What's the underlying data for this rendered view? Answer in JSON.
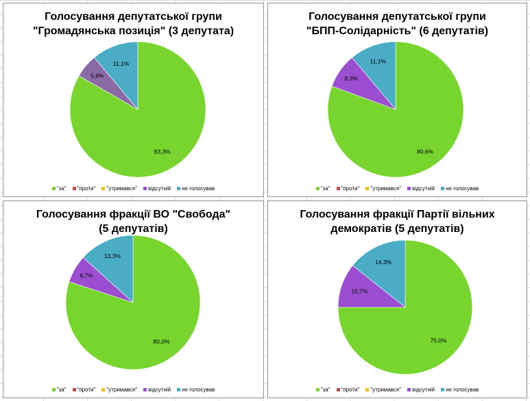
{
  "colors": {
    "za": "#77d52e",
    "proty": "#c0504d",
    "utrymavsia": "#f5c000",
    "vidsutnii": "#9b4fd0",
    "ne_holosuvav": "#4bacc6"
  },
  "legend_labels": [
    "\"за\"",
    "\"проти\"",
    "\"утримався\"",
    "відсутній",
    "не голосував"
  ],
  "chart_data": [
    {
      "type": "pie",
      "title_line1": "Голосування депутатської групи",
      "title_line2": "\"Громадянська позиція\" (3 депутата)",
      "legend_position": "bottom",
      "slices": [
        {
          "label": "\"за\"",
          "value": 83.3,
          "display": "83,3%",
          "color_key": "za"
        },
        {
          "label": "\"проти\"",
          "value": 0,
          "display": "",
          "color_key": "proty"
        },
        {
          "label": "\"утримався\"",
          "value": 0,
          "display": "",
          "color_key": "utrymavsia"
        },
        {
          "label": "відсутній",
          "value": 5.6,
          "display": "5,6%",
          "color_key": "vidsutnii",
          "color_override": "#8a6aa4"
        },
        {
          "label": "не голосував",
          "value": 11.1,
          "display": "11,1%",
          "color_key": "ne_holosuvav"
        }
      ]
    },
    {
      "type": "pie",
      "title_line1": "Голосування депутатської групи",
      "title_line2": "\"БПП-Солідарність\" (6 депутатів)",
      "legend_position": "bottom",
      "slices": [
        {
          "label": "\"за\"",
          "value": 80.6,
          "display": "80,6%",
          "color_key": "za"
        },
        {
          "label": "\"проти\"",
          "value": 0,
          "display": "",
          "color_key": "proty"
        },
        {
          "label": "\"утримався\"",
          "value": 0,
          "display": "",
          "color_key": "utrymavsia"
        },
        {
          "label": "відсутній",
          "value": 8.3,
          "display": "8,3%",
          "color_key": "vidsutnii"
        },
        {
          "label": "не голосував",
          "value": 11.1,
          "display": "11,1%",
          "color_key": "ne_holosuvav"
        }
      ]
    },
    {
      "type": "pie",
      "title_line1": "Голосування фракції ВО \"Свобода\"",
      "title_line2": "(5 депутатів)",
      "legend_position": "bottom",
      "slices": [
        {
          "label": "\"за\"",
          "value": 80.0,
          "display": "80,0%",
          "color_key": "za"
        },
        {
          "label": "\"проти\"",
          "value": 0,
          "display": "",
          "color_key": "proty"
        },
        {
          "label": "\"утримався\"",
          "value": 0,
          "display": "",
          "color_key": "utrymavsia"
        },
        {
          "label": "відсутній",
          "value": 6.7,
          "display": "6,7%",
          "color_key": "vidsutnii"
        },
        {
          "label": "не голосував",
          "value": 13.3,
          "display": "13,3%",
          "color_key": "ne_holosuvav"
        }
      ]
    },
    {
      "type": "pie",
      "title_line1": "Голосування фракції Партії вільних",
      "title_line2": "демократів (5 депутатів)",
      "legend_position": "bottom",
      "slices": [
        {
          "label": "\"за\"",
          "value": 75.0,
          "display": "75,0%",
          "color_key": "za"
        },
        {
          "label": "\"проти\"",
          "value": 0,
          "display": "",
          "color_key": "proty"
        },
        {
          "label": "\"утримався\"",
          "value": 0,
          "display": "",
          "color_key": "utrymavsia"
        },
        {
          "label": "відсутній",
          "value": 10.7,
          "display": "10,7%",
          "color_key": "vidsutnii"
        },
        {
          "label": "не голосував",
          "value": 14.3,
          "display": "14,3%",
          "color_key": "ne_holosuvav"
        }
      ]
    }
  ]
}
